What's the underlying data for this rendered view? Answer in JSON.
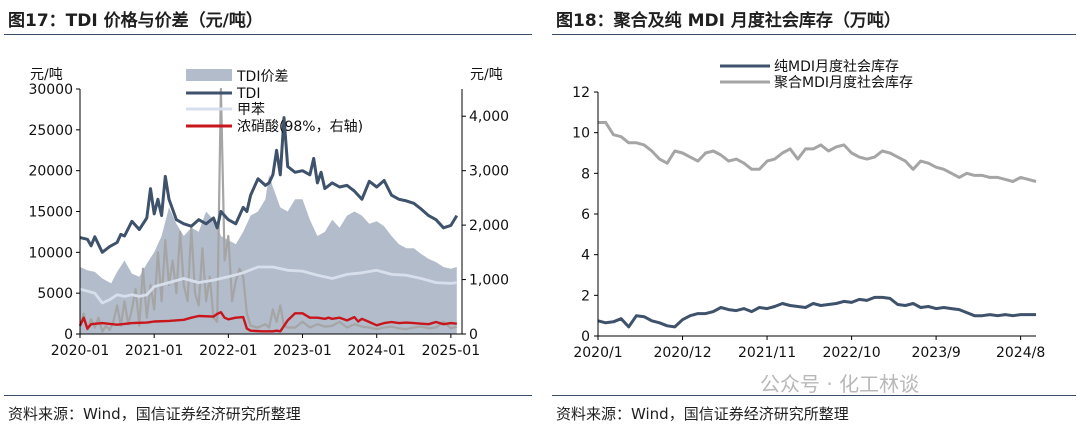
{
  "left": {
    "title": "图17：TDI 价格与价差（元/吨）",
    "source": "资料来源：Wind，国信证券经济研究所整理"
  },
  "right": {
    "title": "图18：聚合及纯 MDI 月度社会库存（万吨）",
    "source": "资料来源：Wind，国信证券经济研究所整理"
  },
  "watermark": "公众号 · 化工林谈",
  "colors": {
    "tdi": "#3e526b",
    "spread": "#b3bccb",
    "toluene": "#d8dfec",
    "nitric": "#c8161d",
    "gray": "#a5a5a5",
    "navy": "#3e526b",
    "axis": "#000000"
  },
  "chart_data": [
    {
      "type": "line",
      "title": "TDI 价格与价差（元/吨）",
      "ylabel": "元/吨",
      "y2label": "元/吨",
      "ylim": [
        0,
        30000
      ],
      "y2lim": [
        0,
        4500
      ],
      "yticks": [
        0,
        5000,
        10000,
        15000,
        20000,
        25000,
        30000
      ],
      "y2ticks": [
        0,
        1000,
        2000,
        3000,
        4000
      ],
      "y2tick_labels": [
        "0",
        "1,000",
        "2,000",
        "3,000",
        "4,000"
      ],
      "xlim": [
        2020.0,
        2025.15
      ],
      "xticks": [
        2020.0,
        2021.0,
        2022.0,
        2023.0,
        2024.0,
        2025.0
      ],
      "xtick_labels": [
        "2020-01",
        "2021-01",
        "2022-01",
        "2023-01",
        "2024-01",
        "2025-01"
      ],
      "legend_position": "top-center",
      "grid": false,
      "series": [
        {
          "name": "TDI价差",
          "kind": "area",
          "axis": "left",
          "x": [
            2020.0,
            2020.1,
            2020.2,
            2020.3,
            2020.42,
            2020.5,
            2020.6,
            2020.7,
            2020.8,
            2020.9,
            2021.0,
            2021.1,
            2021.2,
            2021.3,
            2021.4,
            2021.5,
            2021.6,
            2021.7,
            2021.8,
            2021.85,
            2021.9,
            2022.0,
            2022.1,
            2022.2,
            2022.3,
            2022.4,
            2022.5,
            2022.55,
            2022.6,
            2022.7,
            2022.8,
            2022.9,
            2023.0,
            2023.1,
            2023.2,
            2023.3,
            2023.4,
            2023.5,
            2023.6,
            2023.7,
            2023.8,
            2023.9,
            2024.0,
            2024.1,
            2024.2,
            2024.3,
            2024.4,
            2024.5,
            2024.6,
            2024.7,
            2024.8,
            2024.9,
            2025.0,
            2025.08
          ],
          "y": [
            8200,
            7800,
            7600,
            6800,
            6200,
            7600,
            9000,
            7400,
            7000,
            8600,
            10000,
            12000,
            15500,
            13500,
            12000,
            13000,
            12500,
            15000,
            14000,
            13500,
            12000,
            11500,
            11000,
            12500,
            14500,
            15000,
            16500,
            19500,
            18000,
            15500,
            15000,
            16500,
            16500,
            14000,
            12000,
            12500,
            14000,
            13000,
            14500,
            15000,
            14500,
            13500,
            13800,
            13200,
            12000,
            11000,
            10500,
            10500,
            9800,
            9200,
            8800,
            8200,
            8000,
            8200
          ]
        },
        {
          "name": "TDI",
          "kind": "line",
          "axis": "left",
          "x": [
            2020.0,
            2020.1,
            2020.15,
            2020.2,
            2020.3,
            2020.4,
            2020.5,
            2020.55,
            2020.6,
            2020.7,
            2020.8,
            2020.9,
            2020.95,
            2021.0,
            2021.05,
            2021.1,
            2021.15,
            2021.2,
            2021.3,
            2021.4,
            2021.5,
            2021.6,
            2021.7,
            2021.8,
            2021.85,
            2021.9,
            2022.0,
            2022.1,
            2022.2,
            2022.25,
            2022.3,
            2022.4,
            2022.5,
            2022.55,
            2022.6,
            2022.65,
            2022.7,
            2022.75,
            2022.8,
            2022.9,
            2023.0,
            2023.1,
            2023.15,
            2023.2,
            2023.25,
            2023.3,
            2023.4,
            2023.5,
            2023.6,
            2023.7,
            2023.8,
            2023.9,
            2024.0,
            2024.1,
            2024.2,
            2024.3,
            2024.4,
            2024.5,
            2024.6,
            2024.7,
            2024.8,
            2024.9,
            2025.0,
            2025.08
          ],
          "y": [
            11800,
            11600,
            10800,
            11900,
            10000,
            10700,
            11200,
            12200,
            12000,
            13800,
            12800,
            14200,
            17800,
            14700,
            16500,
            14500,
            19300,
            16500,
            14000,
            13500,
            13200,
            14000,
            13500,
            14200,
            13000,
            15000,
            14000,
            13500,
            15500,
            15000,
            17000,
            19000,
            18200,
            18500,
            19500,
            22500,
            19500,
            26500,
            20500,
            19800,
            20000,
            19500,
            21500,
            18500,
            19800,
            17800,
            18500,
            18000,
            18200,
            17500,
            16500,
            18700,
            18000,
            18800,
            17000,
            16500,
            16300,
            16000,
            15300,
            14500,
            14000,
            13000,
            13300,
            14500
          ]
        },
        {
          "name": "甲苯",
          "kind": "line",
          "axis": "left",
          "x": [
            2020.0,
            2020.2,
            2020.3,
            2020.4,
            2020.5,
            2020.6,
            2020.7,
            2020.8,
            2020.9,
            2021.0,
            2021.2,
            2021.4,
            2021.6,
            2021.8,
            2022.0,
            2022.2,
            2022.4,
            2022.6,
            2022.8,
            2023.0,
            2023.2,
            2023.4,
            2023.6,
            2023.8,
            2024.0,
            2024.2,
            2024.4,
            2024.6,
            2024.8,
            2025.0,
            2025.08
          ],
          "y": [
            5500,
            5000,
            3800,
            4200,
            4800,
            4600,
            4800,
            4600,
            4800,
            5800,
            6300,
            6800,
            6300,
            6600,
            7000,
            7500,
            8200,
            8200,
            7800,
            7700,
            7200,
            6800,
            7300,
            7500,
            7800,
            7300,
            7200,
            6800,
            6300,
            6200,
            6300
          ]
        },
        {
          "name": "浓硝酸(98%，右轴)",
          "kind": "line",
          "axis": "right",
          "x": [
            2020.0,
            2020.05,
            2020.1,
            2020.15,
            2020.3,
            2020.5,
            2020.7,
            2020.9,
            2021.0,
            2021.2,
            2021.4,
            2021.5,
            2021.6,
            2021.8,
            2021.85,
            2021.9,
            2021.95,
            2022.0,
            2022.1,
            2022.2,
            2022.25,
            2022.3,
            2022.45,
            2022.6,
            2022.65,
            2022.7,
            2022.8,
            2022.9,
            2023.0,
            2023.1,
            2023.2,
            2023.3,
            2023.35,
            2023.4,
            2023.5,
            2023.6,
            2023.7,
            2023.75,
            2023.8,
            2023.9,
            2024.0,
            2024.1,
            2024.2,
            2024.3,
            2024.4,
            2024.5,
            2024.6,
            2024.7,
            2024.8,
            2024.9,
            2025.0,
            2025.08
          ],
          "y": [
            150,
            300,
            100,
            180,
            200,
            170,
            200,
            210,
            230,
            240,
            260,
            300,
            330,
            320,
            370,
            400,
            300,
            270,
            300,
            310,
            100,
            60,
            50,
            50,
            60,
            50,
            250,
            380,
            380,
            300,
            300,
            280,
            300,
            280,
            300,
            250,
            310,
            230,
            280,
            220,
            160,
            200,
            220,
            200,
            210,
            200,
            190,
            180,
            220,
            180,
            200,
            190
          ]
        },
        {
          "name": "",
          "kind": "line",
          "axis": "left",
          "color": "gray",
          "x": [
            2020.0,
            2020.05,
            2020.1,
            2020.15,
            2020.2,
            2020.25,
            2020.3,
            2020.35,
            2020.4,
            2020.45,
            2020.5,
            2020.55,
            2020.6,
            2020.65,
            2020.7,
            2020.75,
            2020.8,
            2020.85,
            2020.9,
            2020.95,
            2021.0,
            2021.05,
            2021.1,
            2021.15,
            2021.2,
            2021.25,
            2021.3,
            2021.35,
            2021.4,
            2021.45,
            2021.5,
            2021.55,
            2021.6,
            2021.65,
            2021.7,
            2021.75,
            2021.8,
            2021.85,
            2021.9,
            2021.95,
            2022.0,
            2022.05,
            2022.1,
            2022.15,
            2022.2,
            2022.25,
            2022.3,
            2022.4,
            2022.5,
            2022.55,
            2022.6,
            2022.65,
            2022.7,
            2022.75,
            2022.8,
            2022.9,
            2023.0,
            2023.1,
            2023.2,
            2023.3,
            2023.4,
            2023.5,
            2023.6,
            2023.7,
            2023.8,
            2023.9,
            2024.0,
            2024.1,
            2024.2,
            2024.3,
            2024.4,
            2024.5,
            2024.6,
            2024.7,
            2024.8,
            2024.9,
            2025.0,
            2025.08
          ],
          "y": [
            1000,
            2500,
            500,
            1800,
            800,
            2000,
            300,
            1000,
            500,
            1500,
            3500,
            1000,
            4000,
            1200,
            3000,
            5500,
            1000,
            8000,
            2000,
            6000,
            3000,
            10000,
            4000,
            11500,
            6000,
            9000,
            5000,
            12500,
            6000,
            4000,
            13000,
            5000,
            3500,
            10500,
            4000,
            7000,
            2000,
            1500,
            30000,
            9000,
            12000,
            4000,
            6500,
            8000,
            7000,
            2500,
            1000,
            800,
            1200,
            800,
            3000,
            1500,
            3500,
            1000,
            800,
            800,
            1500,
            800,
            1200,
            900,
            1000,
            1500,
            800,
            1200,
            900,
            800,
            600,
            800,
            900,
            700,
            600,
            800,
            900,
            700,
            800,
            1500,
            700,
            900
          ]
        }
      ]
    },
    {
      "type": "line",
      "title": "聚合及纯 MDI 月度社会库存（万吨）",
      "ylim": [
        0,
        12
      ],
      "yticks": [
        0,
        2,
        4,
        6,
        8,
        10,
        12
      ],
      "xlim": [
        0,
        57
      ],
      "xticks": [
        0,
        11,
        22,
        33,
        44,
        55
      ],
      "xtick_labels": [
        "2020/1",
        "2020/12",
        "2021/11",
        "2022/10",
        "2023/9",
        "2024/8"
      ],
      "legend_position": "top-left",
      "grid": false,
      "series": [
        {
          "name": "纯MDI月度社会库存",
          "values": [
            0.75,
            0.65,
            0.7,
            0.85,
            0.45,
            1.0,
            0.95,
            0.75,
            0.65,
            0.5,
            0.45,
            0.8,
            1.0,
            1.1,
            1.1,
            1.2,
            1.4,
            1.3,
            1.25,
            1.35,
            1.2,
            1.4,
            1.35,
            1.45,
            1.6,
            1.5,
            1.45,
            1.4,
            1.6,
            1.5,
            1.55,
            1.6,
            1.7,
            1.65,
            1.8,
            1.75,
            1.9,
            1.9,
            1.85,
            1.55,
            1.5,
            1.6,
            1.4,
            1.45,
            1.35,
            1.4,
            1.35,
            1.3,
            1.15,
            1.0,
            1.0,
            1.05,
            1.0,
            1.05,
            1.0,
            1.05,
            1.05,
            1.05
          ]
        },
        {
          "name": "聚合MDI月度社会库存",
          "values": [
            10.5,
            10.5,
            9.9,
            9.8,
            9.5,
            9.5,
            9.4,
            9.1,
            8.7,
            8.5,
            9.1,
            9.0,
            8.8,
            8.6,
            9.0,
            9.1,
            8.9,
            8.6,
            8.7,
            8.5,
            8.2,
            8.2,
            8.6,
            8.7,
            9.0,
            9.2,
            8.7,
            9.2,
            9.2,
            9.4,
            9.1,
            9.3,
            9.4,
            9.0,
            8.8,
            8.7,
            8.8,
            9.1,
            9.0,
            8.8,
            8.6,
            8.2,
            8.6,
            8.5,
            8.3,
            8.2,
            8.0,
            7.8,
            8.0,
            7.9,
            7.9,
            7.8,
            7.8,
            7.7,
            7.6,
            7.8,
            7.7,
            7.6
          ]
        }
      ]
    }
  ]
}
